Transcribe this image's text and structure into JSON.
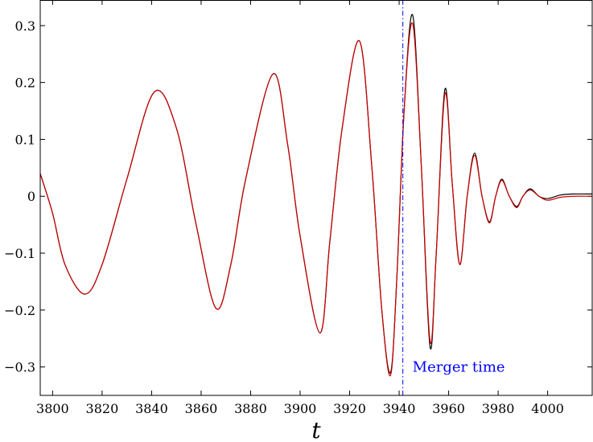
{
  "chart_data": {
    "type": "line",
    "title": "",
    "xlabel": "t",
    "ylabel": "",
    "xlim": [
      3795,
      4018
    ],
    "ylim": [
      -0.35,
      0.345
    ],
    "x_ticks": [
      3800,
      3820,
      3840,
      3860,
      3880,
      3900,
      3920,
      3940,
      3960,
      3980,
      4000
    ],
    "x_tick_labels": [
      "3800",
      "3820",
      "3840",
      "3860",
      "3880",
      "3900",
      "3920",
      "3940",
      "3960",
      "3980",
      "4000"
    ],
    "y_ticks": [
      -0.3,
      -0.2,
      -0.1,
      0,
      0.1,
      0.2,
      0.3
    ],
    "y_tick_labels": [
      "−0.3",
      "−0.2",
      "−0.1",
      "0",
      "0.1",
      "0.2",
      "0.3"
    ],
    "grid": false,
    "legend": "none",
    "series": [
      {
        "color": "#000000",
        "x": [
          3795,
          3800,
          3805,
          3813,
          3820,
          3830,
          3841,
          3850,
          3858,
          3866,
          3872,
          3878,
          3889,
          3895,
          3900,
          3908,
          3912,
          3917,
          3924,
          3929,
          3933,
          3936.5,
          3939,
          3942,
          3945.5,
          3949,
          3952.5,
          3955,
          3958.5,
          3961.5,
          3964.5,
          3967.5,
          3970.5,
          3973.5,
          3976.5,
          3979,
          3981.5,
          3984.5,
          3987.5,
          3990,
          3993,
          3996.5,
          4000,
          4005,
          4010,
          4018
        ],
        "y": [
          0.04,
          -0.03,
          -0.12,
          -0.172,
          -0.12,
          0.03,
          0.183,
          0.12,
          -0.05,
          -0.197,
          -0.12,
          0.03,
          0.215,
          0.09,
          -0.07,
          -0.24,
          -0.08,
          0.12,
          0.273,
          0.05,
          -0.2,
          -0.31,
          -0.15,
          0.15,
          0.318,
          0.05,
          -0.265,
          -0.1,
          0.188,
          0.02,
          -0.12,
          0.0,
          0.076,
          0.0,
          -0.045,
          0.0,
          0.03,
          0.0,
          -0.018,
          0.0,
          0.013,
          0.0,
          -0.004,
          0.002,
          0.004,
          0.004
        ]
      },
      {
        "color": "#cc0000",
        "x": [
          3795,
          3800,
          3805,
          3813,
          3820,
          3830,
          3841,
          3850,
          3858,
          3866,
          3872,
          3878,
          3889,
          3895,
          3900,
          3908,
          3912,
          3917,
          3924,
          3929,
          3933,
          3936.5,
          3939,
          3942,
          3945.5,
          3949,
          3952.5,
          3955,
          3958.5,
          3961.5,
          3964.5,
          3967.5,
          3970.5,
          3973.5,
          3976.5,
          3979,
          3981.5,
          3984.5,
          3987.5,
          3990,
          3993,
          3996.5,
          4000,
          4005,
          4010,
          4018
        ],
        "y": [
          0.04,
          -0.03,
          -0.12,
          -0.172,
          -0.12,
          0.03,
          0.183,
          0.12,
          -0.05,
          -0.197,
          -0.12,
          0.03,
          0.215,
          0.09,
          -0.07,
          -0.24,
          -0.08,
          0.12,
          0.273,
          0.05,
          -0.2,
          -0.315,
          -0.15,
          0.15,
          0.303,
          0.05,
          -0.255,
          -0.1,
          0.18,
          0.02,
          -0.12,
          0.0,
          0.072,
          0.0,
          -0.047,
          0.0,
          0.028,
          0.0,
          -0.02,
          0.0,
          0.011,
          0.0,
          -0.007,
          -0.002,
          0.0,
          0.0
        ]
      }
    ],
    "annotation": {
      "x": 3941.5,
      "label": "Merger time",
      "color": "#0000ff",
      "style": "dash-dot"
    }
  }
}
